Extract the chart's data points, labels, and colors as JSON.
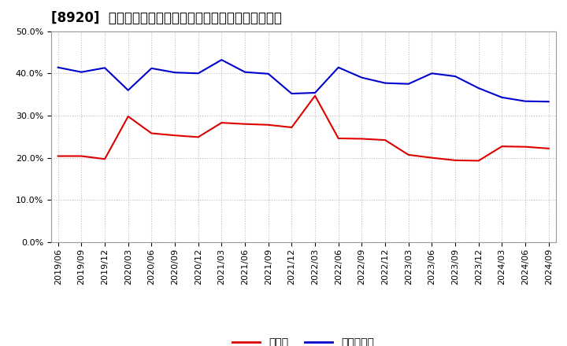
{
  "title": "[8920]  現預金、有利子負債の総資産に対する比率の推移",
  "x_labels": [
    "2019/06",
    "2019/09",
    "2019/12",
    "2020/03",
    "2020/06",
    "2020/09",
    "2020/12",
    "2021/03",
    "2021/06",
    "2021/09",
    "2021/12",
    "2022/03",
    "2022/06",
    "2022/09",
    "2022/12",
    "2023/03",
    "2023/06",
    "2023/09",
    "2023/12",
    "2024/03",
    "2024/06",
    "2024/09"
  ],
  "cash": [
    0.204,
    0.204,
    0.197,
    0.298,
    0.258,
    0.253,
    0.249,
    0.283,
    0.28,
    0.278,
    0.272,
    0.347,
    0.246,
    0.245,
    0.242,
    0.207,
    0.2,
    0.194,
    0.193,
    0.227,
    0.226,
    0.222
  ],
  "debt": [
    0.414,
    0.403,
    0.413,
    0.36,
    0.412,
    0.402,
    0.4,
    0.432,
    0.403,
    0.399,
    0.352,
    0.354,
    0.414,
    0.39,
    0.377,
    0.375,
    0.4,
    0.393,
    0.365,
    0.343,
    0.334,
    0.333
  ],
  "cash_color": "#dd0000",
  "debt_color": "#0000cc",
  "background_color": "#ffffff",
  "grid_color": "#aaaaaa",
  "ylim": [
    0.0,
    0.5
  ],
  "yticks": [
    0.0,
    0.1,
    0.2,
    0.3,
    0.4,
    0.5
  ],
  "legend_cash": "現預金",
  "legend_debt": "有利子負債",
  "title_fontsize": 12,
  "tick_fontsize": 8,
  "legend_fontsize": 10
}
